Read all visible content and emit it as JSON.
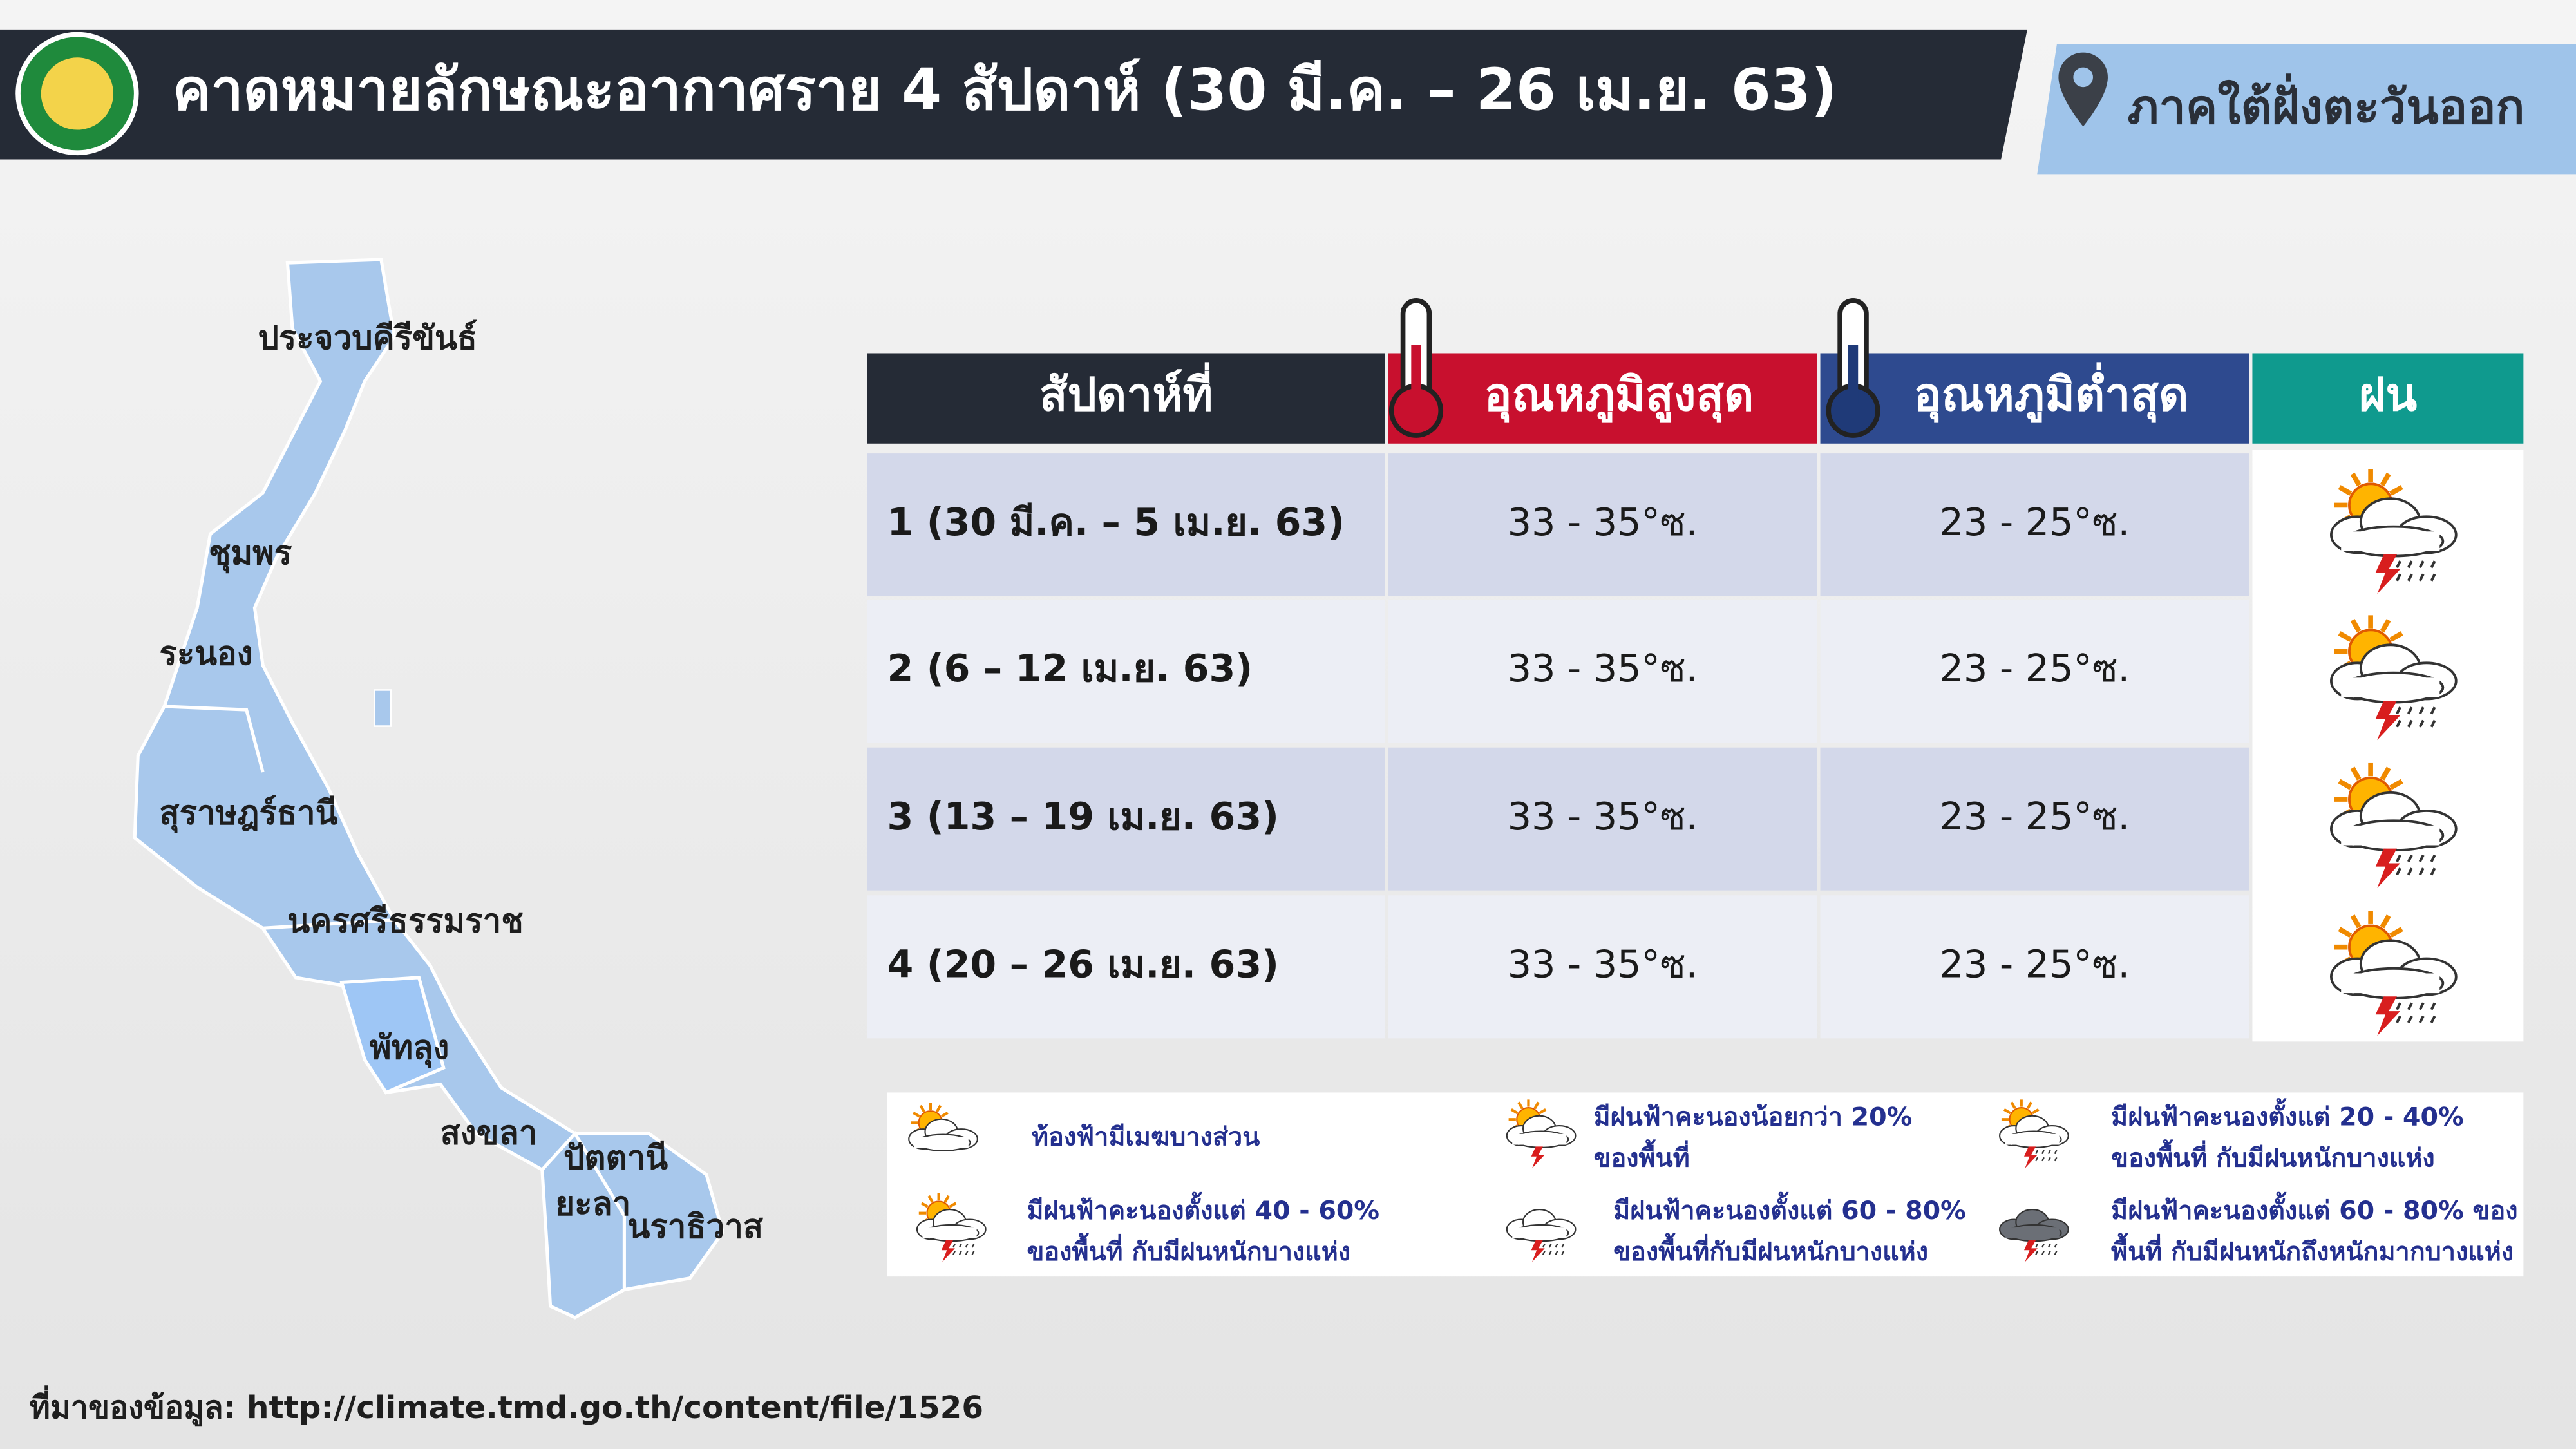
{
  "header": {
    "title": "คาดหมายลักษณะอากาศราย 4 สัปดาห์ (30 มี.ค. – 26 เม.ย. 63)",
    "region": "ภาคใต้ฝั่งตะวันออก"
  },
  "map": {
    "provinces": [
      "ประจวบคีรีขันธ์",
      "ชุมพร",
      "ระนอง",
      "สุราษฎร์ธานี",
      "นครศรีธรรมราช",
      "พัทลุง",
      "สงขลา",
      "ปัตตานี",
      "ยะลา",
      "นราธิวาส"
    ]
  },
  "table": {
    "headers": [
      "สัปดาห์ที่",
      "อุณหภูมิสูงสุด",
      "อุณหภูมิต่ำสุด",
      "ฝน"
    ],
    "rows": [
      [
        "1 (30 มี.ค. – 5 เม.ย. 63)",
        "33 - 35°ซ.",
        "23 - 25°ซ."
      ],
      [
        "2 (6 – 12 เม.ย. 63)",
        "33 - 35°ซ.",
        "23 - 25°ซ."
      ],
      [
        "3 (13 – 19 เม.ย. 63)",
        "33 - 35°ซ.",
        "23 - 25°ซ."
      ],
      [
        "4 (20 – 26 เม.ย. 63)",
        "33 - 35°ซ.",
        "23 - 25°ซ."
      ]
    ]
  },
  "legend": [
    {
      "lines": [
        "ท้องฟ้ามีเมฆบางส่วน"
      ]
    },
    {
      "lines": [
        "มีฝนฟ้าคะนองน้อยกว่า 20%",
        "ของพื้นที่"
      ]
    },
    {
      "lines": [
        "มีฝนฟ้าคะนองตั้งแต่ 20 - 40%",
        "ของพื้นที่ กับมีฝนหนักบางแห่ง"
      ]
    },
    {
      "lines": [
        "มีฝนฟ้าคะนองตั้งแต่ 40 - 60%",
        "ของพื้นที่ กับมีฝนหนักบางแห่ง"
      ]
    },
    {
      "lines": [
        "มีฝนฟ้าคะนองตั้งแต่ 60 - 80%",
        "ของพื้นที่กับมีฝนหนักบางแห่ง"
      ]
    },
    {
      "lines": [
        "มีฝนฟ้าคะนองตั้งแต่ 60 - 80% ของ",
        "พื้นที่ กับมีฝนหนักถึงหนักมากบางแห่ง"
      ]
    }
  ],
  "source": "ที่มาของข้อมูล: http://climate.tmd.go.th/content/file/1526"
}
